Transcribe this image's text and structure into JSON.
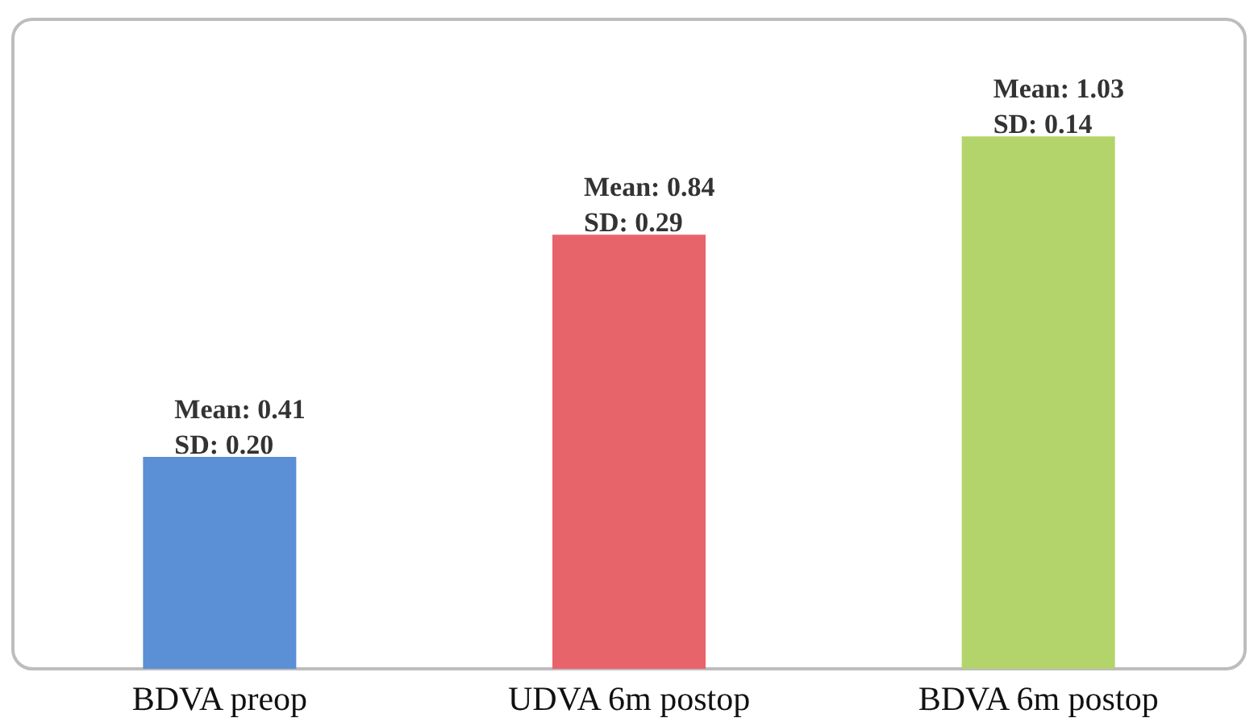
{
  "chart_data": {
    "type": "bar",
    "categories": [
      "BDVA preop",
      "UDVA 6m postop",
      "BDVA 6m postop"
    ],
    "values": [
      0.41,
      0.84,
      1.03
    ],
    "colors": [
      "#5b8fd6",
      "#e8646b",
      "#b3d46a"
    ],
    "value_labels": [
      "Mean: 0.41\nSD: 0.20",
      "Mean: 0.84\nSD: 0.29",
      "Mean: 1.03\nSD: 0.14"
    ],
    "grid": false
  }
}
